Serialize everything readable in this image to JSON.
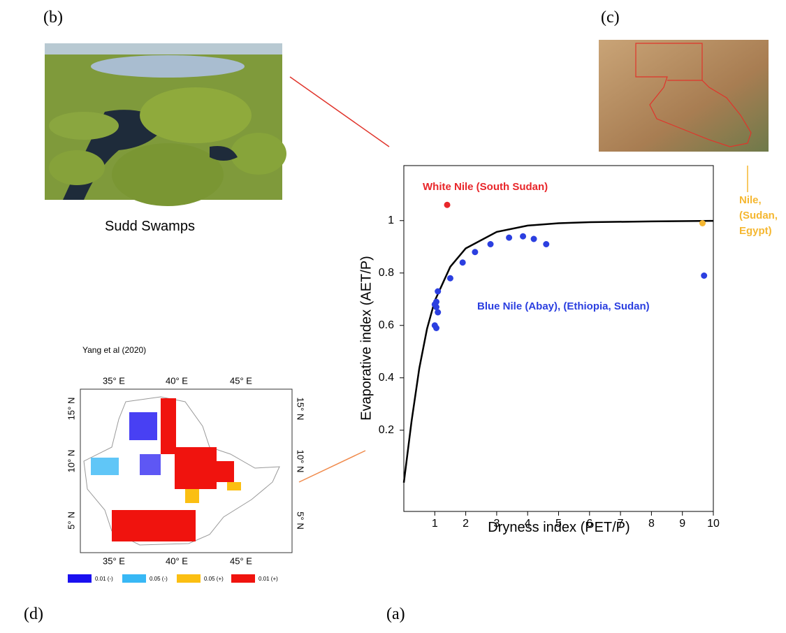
{
  "chart_data": {
    "type": "scatter",
    "xlabel": "Dryness index (PET/P)",
    "ylabel": "Evaporative index (AET/P)",
    "xlim": [
      0,
      10
    ],
    "ylim": [
      -0.11,
      1.21
    ],
    "xticks": [
      1,
      2,
      3,
      4,
      5,
      6,
      7,
      8,
      9,
      10
    ],
    "yticks": [
      0.2,
      0.4,
      0.6,
      0.8,
      1
    ],
    "curve": {
      "color": "#000000",
      "x": [
        0,
        0.25,
        0.5,
        0.75,
        1,
        1.5,
        2,
        3,
        4,
        5,
        6,
        8,
        10
      ],
      "y": [
        0,
        0.235,
        0.436,
        0.587,
        0.694,
        0.824,
        0.894,
        0.957,
        0.981,
        0.99,
        0.994,
        0.997,
        0.999
      ]
    },
    "series": [
      {
        "name": "White Nile (South Sudan)",
        "color": "#e8262a",
        "x": [
          1.4
        ],
        "values": [
          1.06
        ]
      },
      {
        "name": "Blue Nile (Abay), (Ethiopia, Sudan)",
        "color": "#2b3fe0",
        "x": [
          1.0,
          1.05,
          1.0,
          1.05,
          1.1,
          1.05,
          1.1,
          1.5,
          1.9,
          2.3,
          2.8,
          3.4,
          3.85,
          4.2,
          4.6,
          9.7
        ],
        "values": [
          0.6,
          0.59,
          0.68,
          0.67,
          0.65,
          0.69,
          0.73,
          0.78,
          0.84,
          0.88,
          0.91,
          0.935,
          0.94,
          0.93,
          0.91,
          0.79
        ]
      },
      {
        "name": "Nile, (Sudan, Egypt)",
        "color": "#f5b731",
        "x": [
          9.65
        ],
        "values": [
          0.99
        ]
      }
    ]
  },
  "panels": {
    "a": "(a)",
    "b": "(b)",
    "c": "(c)",
    "d": "(d)",
    "b_caption": "Sudd Swamps",
    "d_source": "Yang et al (2020)"
  },
  "map_d": {
    "lon_labels": [
      "35° E",
      "40° E",
      "45° E"
    ],
    "lat_labels": [
      "15° N",
      "10° N",
      "5° N"
    ],
    "legend": [
      {
        "label": "0.01 (-)",
        "color": "#1a10f0"
      },
      {
        "label": "0.05 (-)",
        "color": "#38b8f5"
      },
      {
        "label": "0.05 (+)",
        "color": "#fbbf12"
      },
      {
        "label": "0.01 (+)",
        "color": "#f0130e"
      }
    ]
  }
}
